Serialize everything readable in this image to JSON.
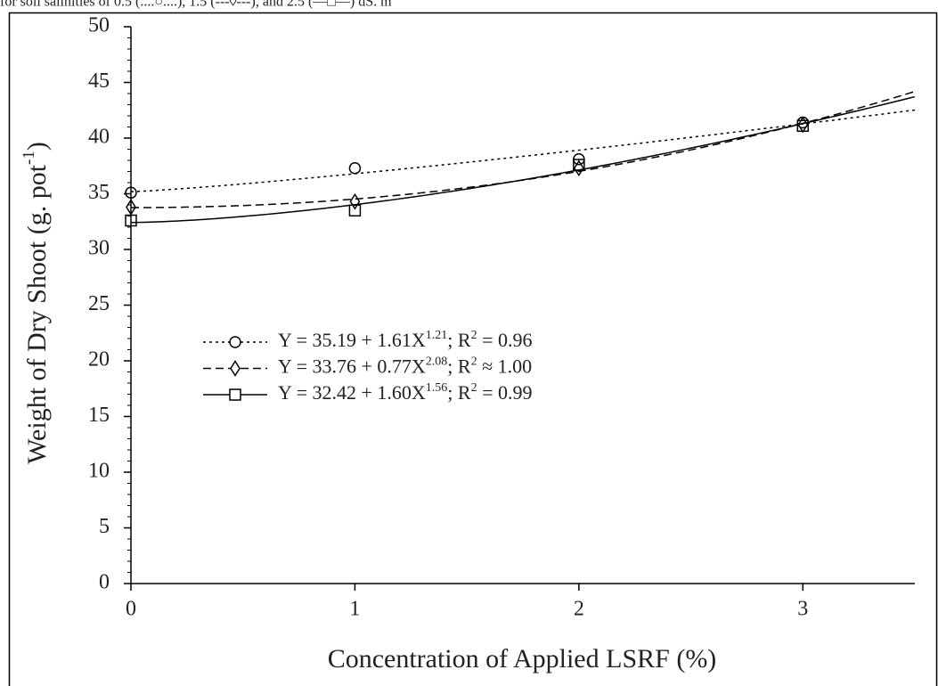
{
  "chart_data": {
    "type": "scatter",
    "caption": "for soil salinities of 0.5 (....○....), 1.5 (---◊---), and 2.5 (—□—) dS. m",
    "x_label": "Concentration  of Applied LSRF (%)",
    "y_label": [
      "Weight of Dry Shoot (g. pot",
      "-1",
      ")"
    ],
    "x": [
      0,
      1,
      2,
      3
    ],
    "xlim": [
      0,
      3.5
    ],
    "xticks": [
      0,
      1,
      2,
      3
    ],
    "ylim": [
      0,
      50
    ],
    "yticks": [
      0,
      5,
      10,
      15,
      20,
      25,
      30,
      35,
      40,
      45,
      50
    ],
    "minor_ytick_step": 1,
    "series": [
      {
        "marker": "circle",
        "line_style": "dotted",
        "color": "#000000",
        "values": [
          35.1,
          37.3,
          38.1,
          41.4
        ],
        "fit": {
          "intercept": 35.19,
          "coefficient": 1.61,
          "exponent": 1.21
        },
        "legend_label": [
          "Y = 35.19 + 1.61X",
          "1.21",
          ";  R",
          "2",
          " = 0.96"
        ]
      },
      {
        "marker": "diamond",
        "line_style": "dashed",
        "color": "#000000",
        "values": [
          33.8,
          34.3,
          37.3,
          41.2
        ],
        "fit": {
          "intercept": 33.76,
          "coefficient": 0.77,
          "exponent": 2.08
        },
        "legend_label": [
          "Y = 33.76 + 0.77X",
          "2.08",
          ";  R",
          "2",
          " ≈ 1.00"
        ]
      },
      {
        "marker": "square",
        "line_style": "solid",
        "color": "#000000",
        "values": [
          32.6,
          33.5,
          37.6,
          41.1
        ],
        "fit": {
          "intercept": 32.42,
          "coefficient": 1.6,
          "exponent": 1.56
        },
        "legend_label": [
          "Y = 32.42 + 1.60X",
          "1.56",
          ";  R",
          "2",
          " = 0.99"
        ]
      }
    ]
  }
}
